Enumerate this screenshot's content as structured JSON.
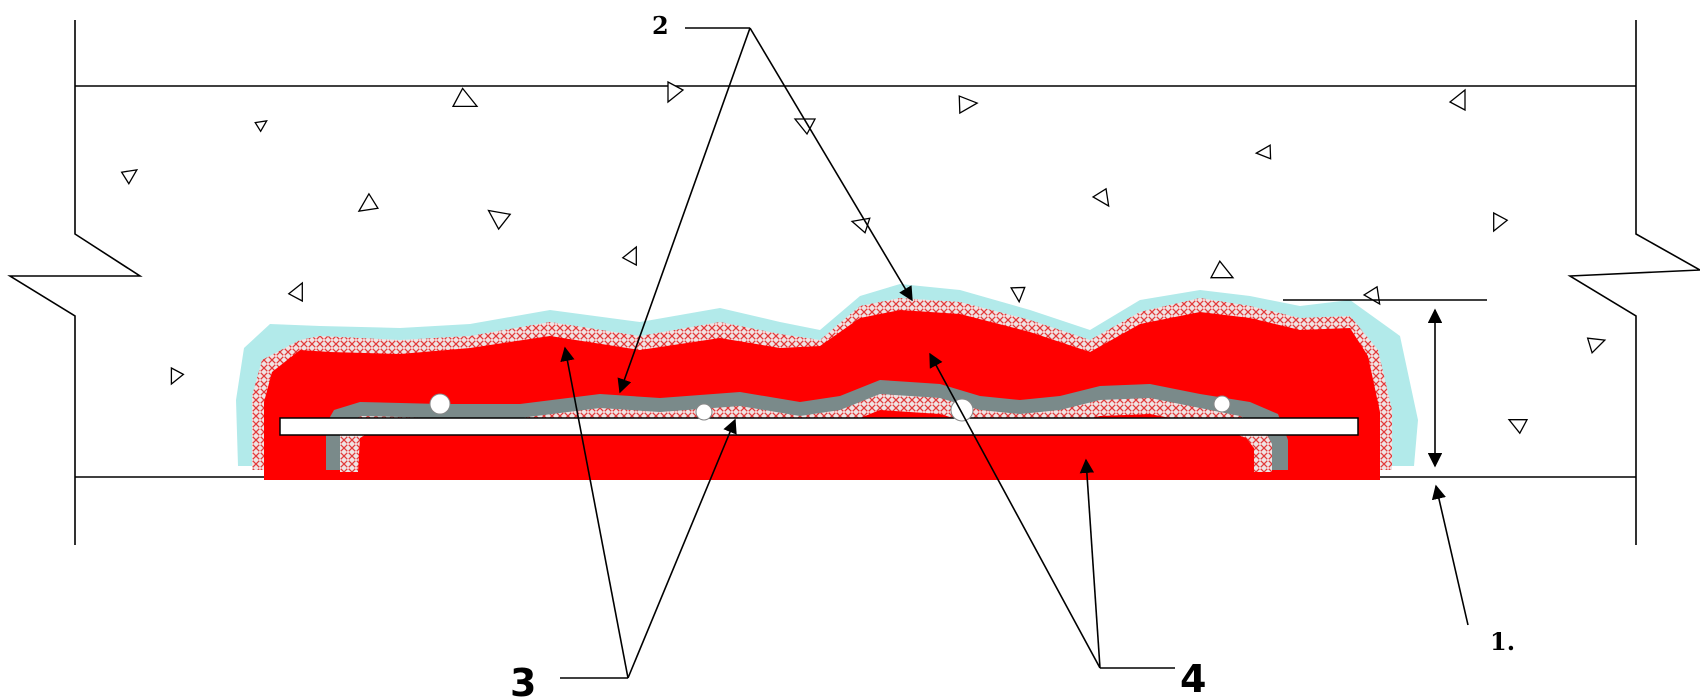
{
  "labels": {
    "callout_1": "1.",
    "callout_2": "2",
    "callout_3": "3",
    "callout_4": "4"
  },
  "colors": {
    "concrete_background": "#ffffff",
    "repair_mortar": "#ff0000",
    "outer_coating": "#b2eaea",
    "bonding_layer_mesh": "#e8d4d4",
    "bonding_layer_border": "#808080",
    "rebar": "#ffffff",
    "outlines": "#000000"
  },
  "icons": {
    "aggregate": "triangle-aggregate-icon",
    "air_void": "circle-void-icon",
    "break_line": "zigzag-break-icon",
    "dimension": "double-arrow-icon"
  }
}
